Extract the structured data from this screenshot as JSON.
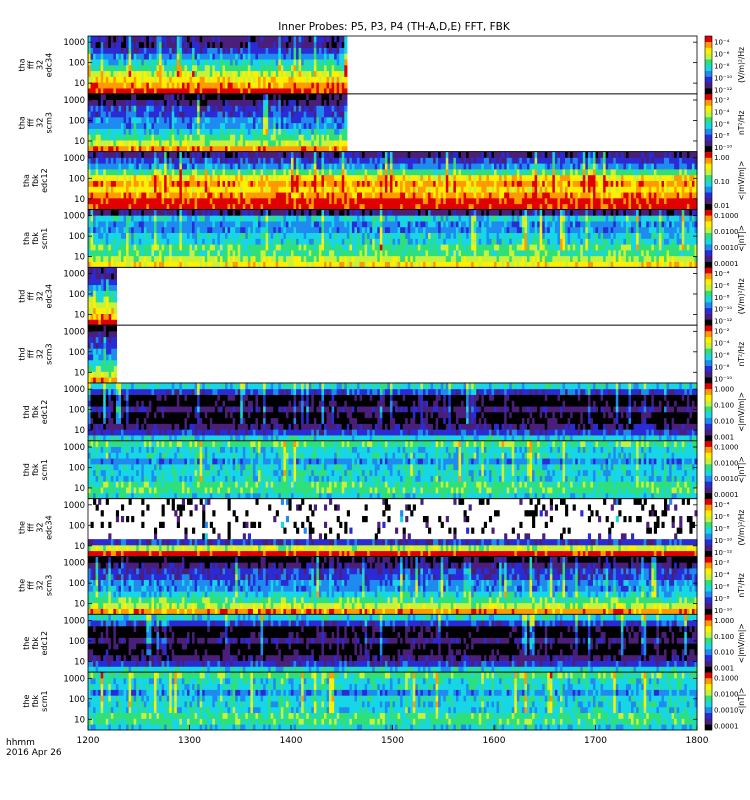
{
  "chart_data": {
    "type": "heatmap",
    "title": "Inner Probes: P5, P3, P4 (TH-A,D,E) FFT, FBK",
    "x_axis": {
      "range": [
        1200,
        1800
      ],
      "ticks": [
        "1200",
        "1300",
        "1400",
        "1500",
        "1600",
        "1700",
        "1800"
      ],
      "label_line1": "hhmm",
      "label_line2": "2016 Apr 26"
    },
    "y_axis": {
      "scale": "log",
      "range": [
        3,
        2000
      ],
      "ticks": [
        "10",
        "100",
        "1000"
      ]
    },
    "colormap": [
      "#000000",
      "#4a1f7a",
      "#2b2bd6",
      "#1f8bf0",
      "#17d6e6",
      "#2fe07a",
      "#c8f23a",
      "#ffef00",
      "#ff9a00",
      "#e00000"
    ],
    "panels": [
      {
        "probe": "tha",
        "label": [
          "tha",
          "fff",
          "32",
          "edc34"
        ],
        "cb_ticks": [
          "10⁻⁴",
          "10⁻⁶",
          "10⁻⁸",
          "10⁻¹⁰",
          "10⁻¹²"
        ],
        "cb_unit": "(V/m)²/Hz",
        "data_end": 1455,
        "profile": "fff_e",
        "sparse": false
      },
      {
        "probe": "tha",
        "label": [
          "tha",
          "fff",
          "32",
          "scm3"
        ],
        "cb_ticks": [
          "10⁻²",
          "10⁻⁴",
          "10⁻⁶",
          "10⁻⁸",
          "10⁻¹⁰"
        ],
        "cb_unit": "nT²/Hz",
        "data_end": 1455,
        "profile": "fff_b",
        "sparse": false
      },
      {
        "probe": "tha",
        "label": [
          "tha",
          "fbk",
          "edc12"
        ],
        "cb_ticks": [
          "1.00",
          "0.10",
          "0.01"
        ],
        "cb_unit": "<|mV/m|>",
        "data_end": 1800,
        "profile": "fbk_e_hot",
        "sparse": false
      },
      {
        "probe": "tha",
        "label": [
          "tha",
          "fbk",
          "scm1"
        ],
        "cb_ticks": [
          "0.1000",
          "0.0100",
          "0.0010",
          "0.0001"
        ],
        "cb_unit": "<|nT|>",
        "data_end": 1800,
        "profile": "fbk_b",
        "sparse": false
      },
      {
        "probe": "thd",
        "label": [
          "thd",
          "fff",
          "32",
          "edc34"
        ],
        "cb_ticks": [
          "10⁻⁴",
          "10⁻⁶",
          "10⁻⁸",
          "10⁻¹⁰",
          "10⁻¹²"
        ],
        "cb_unit": "(V/m)²/Hz",
        "data_end": 1228,
        "profile": "fff_e",
        "sparse": false
      },
      {
        "probe": "thd",
        "label": [
          "thd",
          "fff",
          "32",
          "scm3"
        ],
        "cb_ticks": [
          "10⁻²",
          "10⁻⁴",
          "10⁻⁶",
          "10⁻⁸",
          "10⁻¹⁰"
        ],
        "cb_unit": "nT²/Hz",
        "data_end": 1228,
        "profile": "fff_b",
        "sparse": false
      },
      {
        "probe": "thd",
        "label": [
          "thd",
          "fbk",
          "edc12"
        ],
        "cb_ticks": [
          "1.000",
          "0.100",
          "0.010",
          "0.001"
        ],
        "cb_unit": "<|mV/m|>",
        "data_end": 1800,
        "profile": "fbk_e_dark",
        "sparse": false
      },
      {
        "probe": "thd",
        "label": [
          "thd",
          "fbk",
          "scm1"
        ],
        "cb_ticks": [
          "0.1000",
          "0.0100",
          "0.0010",
          "0.0001"
        ],
        "cb_unit": "<|nT|>",
        "data_end": 1800,
        "profile": "fbk_b_calm",
        "sparse": false
      },
      {
        "probe": "the",
        "label": [
          "the",
          "fff",
          "32",
          "edc34"
        ],
        "cb_ticks": [
          "10⁻⁴",
          "10⁻⁶",
          "10⁻⁸",
          "10⁻¹⁰",
          "10⁻¹²"
        ],
        "cb_unit": "(V/m)²/Hz",
        "data_end": 1800,
        "profile": "fff_e_sparse",
        "sparse": true
      },
      {
        "probe": "the",
        "label": [
          "the",
          "fff",
          "32",
          "scm3"
        ],
        "cb_ticks": [
          "10⁻²",
          "10⁻⁴",
          "10⁻⁶",
          "10⁻⁸",
          "10⁻¹⁰"
        ],
        "cb_unit": "nT²/Hz",
        "data_end": 1800,
        "profile": "fff_b",
        "sparse": false
      },
      {
        "probe": "the",
        "label": [
          "the",
          "fbk",
          "edc12"
        ],
        "cb_ticks": [
          "1.000",
          "0.100",
          "0.010",
          "0.001"
        ],
        "cb_unit": "<|mV/m|>",
        "data_end": 1800,
        "profile": "fbk_e_dark",
        "sparse": false
      },
      {
        "probe": "the",
        "label": [
          "the",
          "fbk",
          "scm1"
        ],
        "cb_ticks": [
          "0.1000",
          "0.0100",
          "0.0010",
          "0.0001"
        ],
        "cb_unit": "<|nT|>",
        "data_end": 1800,
        "profile": "fbk_b_calm",
        "sparse": false
      }
    ]
  }
}
